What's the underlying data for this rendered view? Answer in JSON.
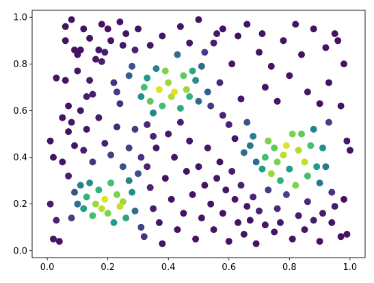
{
  "chart_data": {
    "type": "scatter",
    "title": "",
    "xlabel": "",
    "ylabel": "",
    "xlim": [
      -0.05,
      1.05
    ],
    "ylim": [
      -0.03,
      1.03
    ],
    "grid": false,
    "colormap": "viridis",
    "x_ticks": [
      "0.0",
      "0.2",
      "0.4",
      "0.6",
      "0.8",
      "1.0"
    ],
    "y_ticks": [
      "0.0",
      "0.2",
      "0.4",
      "0.6",
      "0.8",
      "1.0"
    ],
    "points": [
      {
        "x": 0.01,
        "y": 0.47,
        "c": 0.05
      },
      {
        "x": 0.02,
        "y": 0.4,
        "c": 0.05
      },
      {
        "x": 0.03,
        "y": 0.74,
        "c": 0.05
      },
      {
        "x": 0.01,
        "y": 0.2,
        "c": 0.08
      },
      {
        "x": 0.02,
        "y": 0.05,
        "c": 0.06
      },
      {
        "x": 0.03,
        "y": 0.13,
        "c": 0.1
      },
      {
        "x": 0.04,
        "y": 0.04,
        "c": 0.05
      },
      {
        "x": 0.05,
        "y": 0.38,
        "c": 0.05
      },
      {
        "x": 0.06,
        "y": 0.73,
        "c": 0.05
      },
      {
        "x": 0.07,
        "y": 0.62,
        "c": 0.05
      },
      {
        "x": 0.06,
        "y": 0.96,
        "c": 0.05
      },
      {
        "x": 0.08,
        "y": 0.99,
        "c": 0.05
      },
      {
        "x": 0.07,
        "y": 0.51,
        "c": 0.05
      },
      {
        "x": 0.08,
        "y": 0.55,
        "c": 0.06
      },
      {
        "x": 0.09,
        "y": 0.86,
        "c": 0.05
      },
      {
        "x": 0.1,
        "y": 0.84,
        "c": 0.05
      },
      {
        "x": 0.1,
        "y": 0.77,
        "c": 0.06
      },
      {
        "x": 0.11,
        "y": 0.86,
        "c": 0.05
      },
      {
        "x": 0.12,
        "y": 0.95,
        "c": 0.05
      },
      {
        "x": 0.12,
        "y": 0.43,
        "c": 0.08
      },
      {
        "x": 0.13,
        "y": 0.66,
        "c": 0.08
      },
      {
        "x": 0.14,
        "y": 0.73,
        "c": 0.08
      },
      {
        "x": 0.15,
        "y": 0.67,
        "c": 0.08
      },
      {
        "x": 0.16,
        "y": 0.82,
        "c": 0.06
      },
      {
        "x": 0.17,
        "y": 0.86,
        "c": 0.06
      },
      {
        "x": 0.18,
        "y": 0.81,
        "c": 0.08
      },
      {
        "x": 0.19,
        "y": 0.85,
        "c": 0.08
      },
      {
        "x": 0.2,
        "y": 0.95,
        "c": 0.05
      },
      {
        "x": 0.21,
        "y": 0.9,
        "c": 0.05
      },
      {
        "x": 0.22,
        "y": 0.72,
        "c": 0.15
      },
      {
        "x": 0.23,
        "y": 0.68,
        "c": 0.18
      },
      {
        "x": 0.24,
        "y": 0.63,
        "c": 0.15
      },
      {
        "x": 0.25,
        "y": 0.88,
        "c": 0.06
      },
      {
        "x": 0.26,
        "y": 0.93,
        "c": 0.05
      },
      {
        "x": 0.27,
        "y": 0.75,
        "c": 0.3
      },
      {
        "x": 0.28,
        "y": 0.79,
        "c": 0.25
      },
      {
        "x": 0.29,
        "y": 0.86,
        "c": 0.1
      },
      {
        "x": 0.3,
        "y": 0.95,
        "c": 0.05
      },
      {
        "x": 0.31,
        "y": 0.66,
        "c": 0.5
      },
      {
        "x": 0.32,
        "y": 0.7,
        "c": 0.7
      },
      {
        "x": 0.33,
        "y": 0.74,
        "c": 0.55
      },
      {
        "x": 0.34,
        "y": 0.64,
        "c": 0.75
      },
      {
        "x": 0.35,
        "y": 0.59,
        "c": 0.45
      },
      {
        "x": 0.36,
        "y": 0.78,
        "c": 0.45
      },
      {
        "x": 0.37,
        "y": 0.69,
        "c": 0.95
      },
      {
        "x": 0.38,
        "y": 0.62,
        "c": 0.7
      },
      {
        "x": 0.39,
        "y": 0.77,
        "c": 0.8
      },
      {
        "x": 0.4,
        "y": 0.72,
        "c": 0.85
      },
      {
        "x": 0.41,
        "y": 0.66,
        "c": 0.88
      },
      {
        "x": 0.42,
        "y": 0.68,
        "c": 0.95
      },
      {
        "x": 0.43,
        "y": 0.84,
        "c": 0.35
      },
      {
        "x": 0.44,
        "y": 0.61,
        "c": 0.6
      },
      {
        "x": 0.45,
        "y": 0.75,
        "c": 0.75
      },
      {
        "x": 0.46,
        "y": 0.69,
        "c": 0.85
      },
      {
        "x": 0.47,
        "y": 0.66,
        "c": 0.65
      },
      {
        "x": 0.48,
        "y": 0.77,
        "c": 0.6
      },
      {
        "x": 0.49,
        "y": 0.73,
        "c": 0.5
      },
      {
        "x": 0.5,
        "y": 0.64,
        "c": 0.35
      },
      {
        "x": 0.51,
        "y": 0.79,
        "c": 0.35
      },
      {
        "x": 0.52,
        "y": 0.85,
        "c": 0.18
      },
      {
        "x": 0.53,
        "y": 0.68,
        "c": 0.3
      },
      {
        "x": 0.54,
        "y": 0.62,
        "c": 0.18
      },
      {
        "x": 0.55,
        "y": 0.89,
        "c": 0.08
      },
      {
        "x": 0.56,
        "y": 0.93,
        "c": 0.06
      },
      {
        "x": 0.57,
        "y": 0.72,
        "c": 0.12
      },
      {
        "x": 0.58,
        "y": 0.58,
        "c": 0.1
      },
      {
        "x": 0.6,
        "y": 0.54,
        "c": 0.1
      },
      {
        "x": 0.61,
        "y": 0.8,
        "c": 0.06
      },
      {
        "x": 0.62,
        "y": 0.48,
        "c": 0.06
      },
      {
        "x": 0.63,
        "y": 0.92,
        "c": 0.05
      },
      {
        "x": 0.64,
        "y": 0.65,
        "c": 0.06
      },
      {
        "x": 0.65,
        "y": 0.42,
        "c": 0.35
      },
      {
        "x": 0.66,
        "y": 0.55,
        "c": 0.25
      },
      {
        "x": 0.67,
        "y": 0.45,
        "c": 0.4
      },
      {
        "x": 0.68,
        "y": 0.49,
        "c": 0.45
      },
      {
        "x": 0.69,
        "y": 0.38,
        "c": 0.35
      },
      {
        "x": 0.7,
        "y": 0.85,
        "c": 0.05
      },
      {
        "x": 0.71,
        "y": 0.35,
        "c": 0.55
      },
      {
        "x": 0.72,
        "y": 0.4,
        "c": 0.7
      },
      {
        "x": 0.73,
        "y": 0.47,
        "c": 0.8
      },
      {
        "x": 0.74,
        "y": 0.33,
        "c": 0.85
      },
      {
        "x": 0.75,
        "y": 0.44,
        "c": 0.75
      },
      {
        "x": 0.76,
        "y": 0.38,
        "c": 0.8
      },
      {
        "x": 0.77,
        "y": 0.3,
        "c": 0.65
      },
      {
        "x": 0.78,
        "y": 0.41,
        "c": 0.9
      },
      {
        "x": 0.79,
        "y": 0.45,
        "c": 0.95
      },
      {
        "x": 0.8,
        "y": 0.35,
        "c": 0.55
      },
      {
        "x": 0.81,
        "y": 0.5,
        "c": 0.8
      },
      {
        "x": 0.82,
        "y": 0.28,
        "c": 0.8
      },
      {
        "x": 0.83,
        "y": 0.43,
        "c": 0.88
      },
      {
        "x": 0.84,
        "y": 0.5,
        "c": 0.75
      },
      {
        "x": 0.85,
        "y": 0.38,
        "c": 0.9
      },
      {
        "x": 0.86,
        "y": 0.32,
        "c": 0.7
      },
      {
        "x": 0.87,
        "y": 0.45,
        "c": 0.7
      },
      {
        "x": 0.88,
        "y": 0.52,
        "c": 0.45
      },
      {
        "x": 0.89,
        "y": 0.36,
        "c": 0.55
      },
      {
        "x": 0.9,
        "y": 0.29,
        "c": 0.4
      },
      {
        "x": 0.91,
        "y": 0.44,
        "c": 0.5
      },
      {
        "x": 0.92,
        "y": 0.36,
        "c": 0.4
      },
      {
        "x": 0.93,
        "y": 0.55,
        "c": 0.2
      },
      {
        "x": 0.94,
        "y": 0.25,
        "c": 0.15
      },
      {
        "x": 0.95,
        "y": 0.19,
        "c": 0.08
      },
      {
        "x": 0.96,
        "y": 0.9,
        "c": 0.05
      },
      {
        "x": 0.97,
        "y": 0.62,
        "c": 0.05
      },
      {
        "x": 0.98,
        "y": 0.22,
        "c": 0.05
      },
      {
        "x": 0.99,
        "y": 0.47,
        "c": 0.06
      },
      {
        "x": 1.0,
        "y": 0.43,
        "c": 0.05
      },
      {
        "x": 0.99,
        "y": 0.07,
        "c": 0.05
      },
      {
        "x": 0.98,
        "y": 0.8,
        "c": 0.05
      },
      {
        "x": 0.97,
        "y": 0.06,
        "c": 0.05
      },
      {
        "x": 0.95,
        "y": 0.93,
        "c": 0.05
      },
      {
        "x": 0.94,
        "y": 0.12,
        "c": 0.05
      },
      {
        "x": 0.93,
        "y": 0.72,
        "c": 0.05
      },
      {
        "x": 0.92,
        "y": 0.87,
        "c": 0.05
      },
      {
        "x": 0.08,
        "y": 0.14,
        "c": 0.2
      },
      {
        "x": 0.09,
        "y": 0.25,
        "c": 0.25
      },
      {
        "x": 0.1,
        "y": 0.2,
        "c": 0.35
      },
      {
        "x": 0.11,
        "y": 0.28,
        "c": 0.45
      },
      {
        "x": 0.12,
        "y": 0.18,
        "c": 0.55
      },
      {
        "x": 0.13,
        "y": 0.23,
        "c": 0.65
      },
      {
        "x": 0.14,
        "y": 0.29,
        "c": 0.5
      },
      {
        "x": 0.15,
        "y": 0.15,
        "c": 0.7
      },
      {
        "x": 0.16,
        "y": 0.2,
        "c": 0.85
      },
      {
        "x": 0.17,
        "y": 0.26,
        "c": 0.65
      },
      {
        "x": 0.18,
        "y": 0.18,
        "c": 0.9
      },
      {
        "x": 0.19,
        "y": 0.22,
        "c": 0.95
      },
      {
        "x": 0.2,
        "y": 0.16,
        "c": 0.8
      },
      {
        "x": 0.21,
        "y": 0.29,
        "c": 0.7
      },
      {
        "x": 0.22,
        "y": 0.12,
        "c": 0.55
      },
      {
        "x": 0.23,
        "y": 0.24,
        "c": 0.8
      },
      {
        "x": 0.24,
        "y": 0.19,
        "c": 0.9
      },
      {
        "x": 0.25,
        "y": 0.21,
        "c": 0.85
      },
      {
        "x": 0.26,
        "y": 0.14,
        "c": 0.6
      },
      {
        "x": 0.27,
        "y": 0.3,
        "c": 0.45
      },
      {
        "x": 0.28,
        "y": 0.25,
        "c": 0.5
      },
      {
        "x": 0.29,
        "y": 0.17,
        "c": 0.35
      },
      {
        "x": 0.3,
        "y": 0.33,
        "c": 0.25
      },
      {
        "x": 0.31,
        "y": 0.1,
        "c": 0.2
      },
      {
        "x": 0.32,
        "y": 0.06,
        "c": 0.15
      },
      {
        "x": 0.33,
        "y": 0.36,
        "c": 0.1
      },
      {
        "x": 0.34,
        "y": 0.27,
        "c": 0.1
      },
      {
        "x": 0.35,
        "y": 0.18,
        "c": 0.08
      },
      {
        "x": 0.36,
        "y": 0.44,
        "c": 0.06
      },
      {
        "x": 0.37,
        "y": 0.12,
        "c": 0.06
      },
      {
        "x": 0.38,
        "y": 0.03,
        "c": 0.05
      },
      {
        "x": 0.39,
        "y": 0.31,
        "c": 0.05
      },
      {
        "x": 0.4,
        "y": 0.5,
        "c": 0.06
      },
      {
        "x": 0.41,
        "y": 0.22,
        "c": 0.05
      },
      {
        "x": 0.42,
        "y": 0.4,
        "c": 0.06
      },
      {
        "x": 0.43,
        "y": 0.09,
        "c": 0.05
      },
      {
        "x": 0.44,
        "y": 0.55,
        "c": 0.08
      },
      {
        "x": 0.45,
        "y": 0.16,
        "c": 0.05
      },
      {
        "x": 0.46,
        "y": 0.34,
        "c": 0.05
      },
      {
        "x": 0.47,
        "y": 0.47,
        "c": 0.06
      },
      {
        "x": 0.48,
        "y": 0.24,
        "c": 0.05
      },
      {
        "x": 0.49,
        "y": 0.05,
        "c": 0.05
      },
      {
        "x": 0.5,
        "y": 0.36,
        "c": 0.05
      },
      {
        "x": 0.51,
        "y": 0.14,
        "c": 0.05
      },
      {
        "x": 0.52,
        "y": 0.28,
        "c": 0.05
      },
      {
        "x": 0.53,
        "y": 0.44,
        "c": 0.06
      },
      {
        "x": 0.54,
        "y": 0.2,
        "c": 0.05
      },
      {
        "x": 0.55,
        "y": 0.09,
        "c": 0.05
      },
      {
        "x": 0.56,
        "y": 0.31,
        "c": 0.06
      },
      {
        "x": 0.57,
        "y": 0.38,
        "c": 0.05
      },
      {
        "x": 0.58,
        "y": 0.16,
        "c": 0.05
      },
      {
        "x": 0.59,
        "y": 0.26,
        "c": 0.06
      },
      {
        "x": 0.6,
        "y": 0.04,
        "c": 0.05
      },
      {
        "x": 0.61,
        "y": 0.34,
        "c": 0.08
      },
      {
        "x": 0.62,
        "y": 0.22,
        "c": 0.06
      },
      {
        "x": 0.63,
        "y": 0.12,
        "c": 0.05
      },
      {
        "x": 0.64,
        "y": 0.28,
        "c": 0.1
      },
      {
        "x": 0.65,
        "y": 0.07,
        "c": 0.05
      },
      {
        "x": 0.66,
        "y": 0.19,
        "c": 0.06
      },
      {
        "x": 0.67,
        "y": 0.13,
        "c": 0.05
      },
      {
        "x": 0.68,
        "y": 0.23,
        "c": 0.1
      },
      {
        "x": 0.69,
        "y": 0.03,
        "c": 0.05
      },
      {
        "x": 0.7,
        "y": 0.17,
        "c": 0.1
      },
      {
        "x": 0.72,
        "y": 0.11,
        "c": 0.06
      },
      {
        "x": 0.73,
        "y": 0.26,
        "c": 0.2
      },
      {
        "x": 0.75,
        "y": 0.08,
        "c": 0.05
      },
      {
        "x": 0.76,
        "y": 0.18,
        "c": 0.12
      },
      {
        "x": 0.77,
        "y": 0.12,
        "c": 0.06
      },
      {
        "x": 0.79,
        "y": 0.24,
        "c": 0.2
      },
      {
        "x": 0.81,
        "y": 0.05,
        "c": 0.05
      },
      {
        "x": 0.83,
        "y": 0.15,
        "c": 0.08
      },
      {
        "x": 0.85,
        "y": 0.09,
        "c": 0.06
      },
      {
        "x": 0.86,
        "y": 0.21,
        "c": 0.12
      },
      {
        "x": 0.88,
        "y": 0.13,
        "c": 0.08
      },
      {
        "x": 0.9,
        "y": 0.04,
        "c": 0.05
      },
      {
        "x": 0.91,
        "y": 0.16,
        "c": 0.08
      },
      {
        "x": 0.05,
        "y": 0.57,
        "c": 0.05
      },
      {
        "x": 0.07,
        "y": 0.32,
        "c": 0.08
      },
      {
        "x": 0.09,
        "y": 0.45,
        "c": 0.06
      },
      {
        "x": 0.11,
        "y": 0.6,
        "c": 0.06
      },
      {
        "x": 0.13,
        "y": 0.52,
        "c": 0.06
      },
      {
        "x": 0.15,
        "y": 0.38,
        "c": 0.15
      },
      {
        "x": 0.17,
        "y": 0.57,
        "c": 0.08
      },
      {
        "x": 0.19,
        "y": 0.46,
        "c": 0.1
      },
      {
        "x": 0.21,
        "y": 0.41,
        "c": 0.2
      },
      {
        "x": 0.23,
        "y": 0.53,
        "c": 0.12
      },
      {
        "x": 0.25,
        "y": 0.36,
        "c": 0.25
      },
      {
        "x": 0.27,
        "y": 0.44,
        "c": 0.2
      },
      {
        "x": 0.29,
        "y": 0.52,
        "c": 0.18
      },
      {
        "x": 0.31,
        "y": 0.4,
        "c": 0.15
      },
      {
        "x": 0.33,
        "y": 0.54,
        "c": 0.12
      },
      {
        "x": 0.35,
        "y": 0.49,
        "c": 0.1
      },
      {
        "x": 0.06,
        "y": 0.9,
        "c": 0.05
      },
      {
        "x": 0.14,
        "y": 0.91,
        "c": 0.05
      },
      {
        "x": 0.18,
        "y": 0.97,
        "c": 0.05
      },
      {
        "x": 0.24,
        "y": 0.98,
        "c": 0.05
      },
      {
        "x": 0.34,
        "y": 0.88,
        "c": 0.06
      },
      {
        "x": 0.38,
        "y": 0.92,
        "c": 0.05
      },
      {
        "x": 0.44,
        "y": 0.96,
        "c": 0.05
      },
      {
        "x": 0.47,
        "y": 0.89,
        "c": 0.06
      },
      {
        "x": 0.5,
        "y": 0.99,
        "c": 0.05
      },
      {
        "x": 0.58,
        "y": 0.95,
        "c": 0.05
      },
      {
        "x": 0.66,
        "y": 0.97,
        "c": 0.05
      },
      {
        "x": 0.71,
        "y": 0.93,
        "c": 0.05
      },
      {
        "x": 0.74,
        "y": 0.79,
        "c": 0.05
      },
      {
        "x": 0.78,
        "y": 0.9,
        "c": 0.05
      },
      {
        "x": 0.8,
        "y": 0.75,
        "c": 0.05
      },
      {
        "x": 0.82,
        "y": 0.97,
        "c": 0.05
      },
      {
        "x": 0.84,
        "y": 0.84,
        "c": 0.05
      },
      {
        "x": 0.86,
        "y": 0.68,
        "c": 0.06
      },
      {
        "x": 0.88,
        "y": 0.95,
        "c": 0.05
      },
      {
        "x": 0.9,
        "y": 0.63,
        "c": 0.05
      },
      {
        "x": 0.76,
        "y": 0.64,
        "c": 0.06
      },
      {
        "x": 0.72,
        "y": 0.7,
        "c": 0.05
      }
    ]
  }
}
